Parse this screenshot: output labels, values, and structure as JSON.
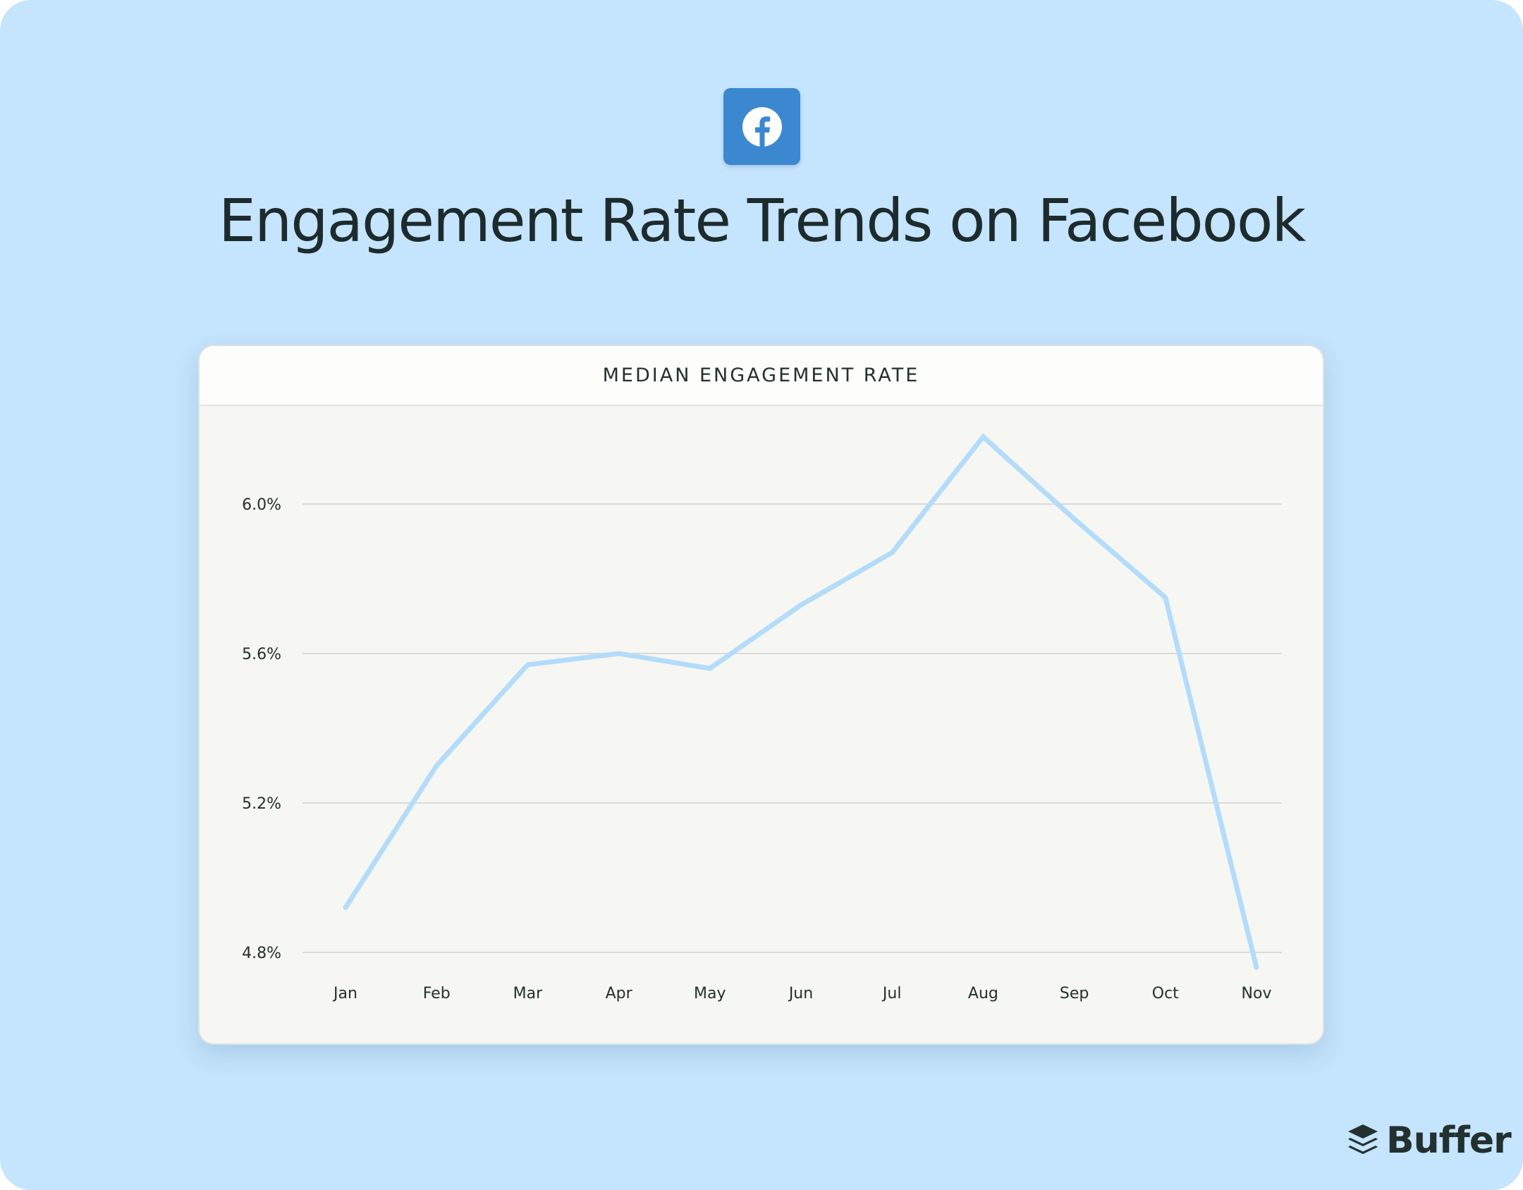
{
  "header": {
    "title": "Engagement Rate Trends on Facebook",
    "icon": "facebook-icon"
  },
  "card": {
    "title": "MEDIAN ENGAGEMENT RATE"
  },
  "brand": {
    "name": "Buffer",
    "icon": "buffer-logo-icon"
  },
  "colors": {
    "background": "#c5e4fd",
    "facebook_blue": "#3b88d0",
    "line": "#b3dcfb",
    "text": "#1d2b2d"
  },
  "chart_data": {
    "type": "line",
    "title": "MEDIAN ENGAGEMENT RATE",
    "xlabel": "",
    "ylabel": "",
    "categories": [
      "Jan",
      "Feb",
      "Mar",
      "Apr",
      "May",
      "Jun",
      "Jul",
      "Aug",
      "Sep",
      "Oct",
      "Nov"
    ],
    "values": [
      4.92,
      5.3,
      5.57,
      5.6,
      5.56,
      5.73,
      5.87,
      6.18,
      5.96,
      5.75,
      4.76
    ],
    "yticks": [
      4.8,
      5.2,
      5.6,
      6.0
    ],
    "ytick_labels": [
      "4.8%",
      "5.2%",
      "5.6%",
      "6.0%"
    ],
    "ylim": [
      4.8,
      6.0
    ],
    "grid": true,
    "legend": "none"
  }
}
